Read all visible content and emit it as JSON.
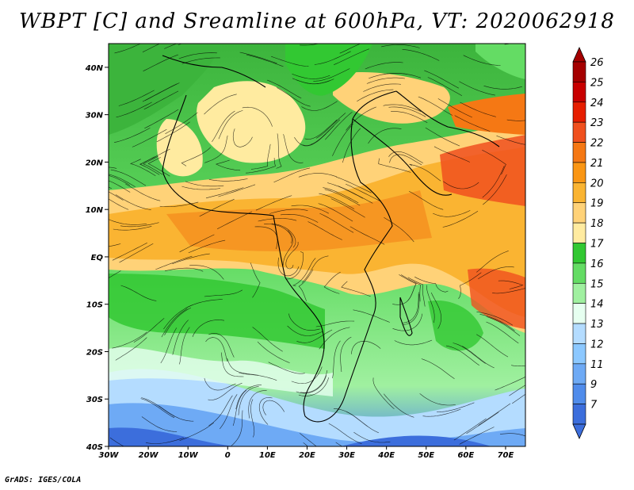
{
  "title": "WBPT [C] and Sreamline at 600hPa, VT: 2020062918",
  "credit": "GrADS: IGES/COLA",
  "map": {
    "lon_range": [
      -30,
      75
    ],
    "lat_range": [
      -40,
      45
    ],
    "lat_ticks": [
      {
        "value": 40,
        "label": "40N"
      },
      {
        "value": 30,
        "label": "30N"
      },
      {
        "value": 20,
        "label": "20N"
      },
      {
        "value": 10,
        "label": "10N"
      },
      {
        "value": 0,
        "label": "EQ"
      },
      {
        "value": -10,
        "label": "10S"
      },
      {
        "value": -20,
        "label": "20S"
      },
      {
        "value": -30,
        "label": "30S"
      },
      {
        "value": -40,
        "label": "40S"
      }
    ],
    "lon_ticks": [
      {
        "value": -30,
        "label": "30W"
      },
      {
        "value": -20,
        "label": "20W"
      },
      {
        "value": -10,
        "label": "10W"
      },
      {
        "value": 0,
        "label": "0"
      },
      {
        "value": 10,
        "label": "10E"
      },
      {
        "value": 20,
        "label": "20E"
      },
      {
        "value": 30,
        "label": "30E"
      },
      {
        "value": 40,
        "label": "40E"
      },
      {
        "value": 50,
        "label": "50E"
      },
      {
        "value": 60,
        "label": "60E"
      },
      {
        "value": 70,
        "label": "70E"
      }
    ]
  },
  "colorbar": {
    "levels": [
      {
        "label": "26",
        "color": "#a50000"
      },
      {
        "label": "25",
        "color": "#c80000"
      },
      {
        "label": "24",
        "color": "#e61e00"
      },
      {
        "label": "23",
        "color": "#f0501e"
      },
      {
        "label": "22",
        "color": "#f57814"
      },
      {
        "label": "21",
        "color": "#fa9614"
      },
      {
        "label": "20",
        "color": "#fab432"
      },
      {
        "label": "19",
        "color": "#ffd278"
      },
      {
        "label": "18",
        "color": "#ffeba0"
      },
      {
        "label": "17",
        "color": "#32c832"
      },
      {
        "label": "16",
        "color": "#64dc64"
      },
      {
        "label": "15",
        "color": "#a0f0a0"
      },
      {
        "label": "14",
        "color": "#e6fff0"
      },
      {
        "label": "13",
        "color": "#b4dcff"
      },
      {
        "label": "12",
        "color": "#8cc8ff"
      },
      {
        "label": "11",
        "color": "#6eaaf5"
      },
      {
        "label": "9",
        "color": "#508ceb"
      },
      {
        "label": "7",
        "color": "#3c6edc"
      }
    ],
    "bottom_color": "#3c6edc",
    "top_color": "#a50000"
  }
}
